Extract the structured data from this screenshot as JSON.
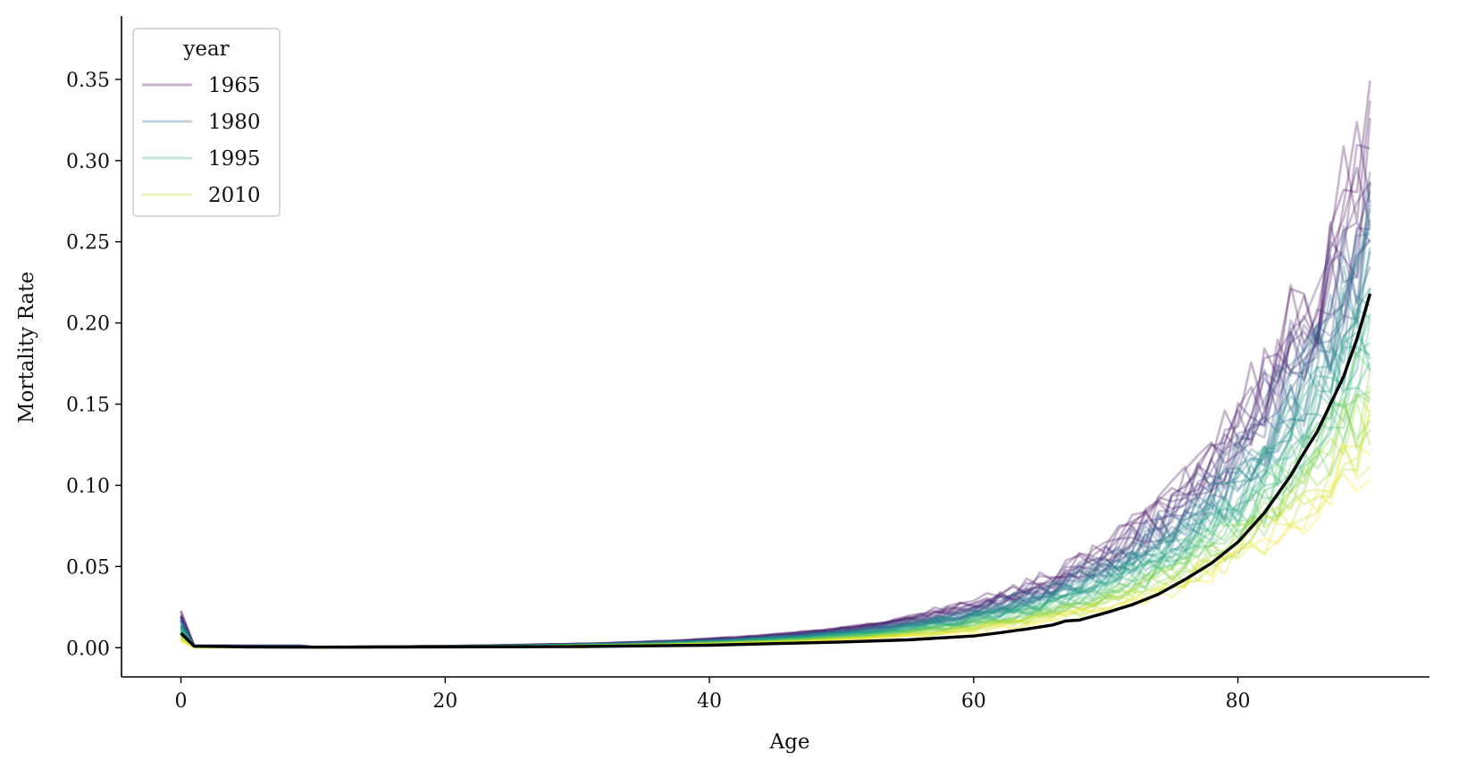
{
  "chart_data": {
    "type": "line",
    "xlabel": "Age",
    "ylabel": "Mortality Rate",
    "xlim": [
      -4.5,
      94.5
    ],
    "ylim": [
      -0.018,
      0.389
    ],
    "x_ticks": [
      0,
      20,
      40,
      60,
      80
    ],
    "x_tick_labels": [
      "0",
      "20",
      "40",
      "60",
      "80"
    ],
    "y_ticks": [
      0.0,
      0.05,
      0.1,
      0.15,
      0.2,
      0.25,
      0.3,
      0.35
    ],
    "y_tick_labels": [
      "0.00",
      "0.05",
      "0.10",
      "0.15",
      "0.20",
      "0.25",
      "0.30",
      "0.35"
    ],
    "grid": false,
    "legend": {
      "title": "year",
      "placement": "top-left",
      "entries": [
        {
          "label": "1965",
          "color": "#440154"
        },
        {
          "label": "1980",
          "color": "#31688e"
        },
        {
          "label": "1995",
          "color": "#35b779"
        },
        {
          "label": "2010",
          "color": "#b5de2b"
        }
      ]
    },
    "series_alpha": 0.3,
    "year_range": [
      1965,
      2014
    ],
    "per_year_series": {
      "note_x": "ages 0..90 for each year, colored by year (viridis)",
      "colormap": "viridis"
    },
    "mean_series": {
      "color": "#000000",
      "x": [
        0,
        1,
        5,
        10,
        20,
        30,
        40,
        45,
        50,
        55,
        60,
        62,
        64,
        66,
        67,
        68,
        70,
        72,
        74,
        76,
        78,
        80,
        82,
        84,
        85,
        86,
        87,
        88,
        89,
        90
      ],
      "y": [
        0.009,
        0.001,
        0.0005,
        0.0003,
        0.0005,
        0.0007,
        0.0015,
        0.0025,
        0.0035,
        0.0048,
        0.0072,
        0.0092,
        0.0115,
        0.014,
        0.0165,
        0.017,
        0.0215,
        0.0265,
        0.033,
        0.042,
        0.052,
        0.065,
        0.083,
        0.106,
        0.12,
        0.133,
        0.15,
        0.167,
        0.19,
        0.218
      ]
    }
  }
}
